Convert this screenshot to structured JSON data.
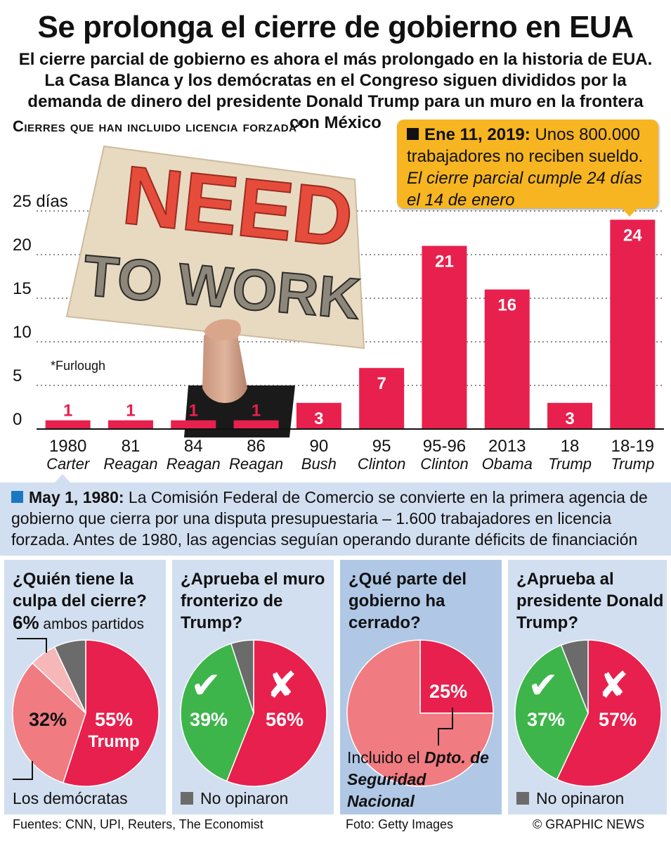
{
  "header": {
    "title": "Se prolonga el cierre de gobierno en EUA",
    "subtitle": "El cierre parcial de gobierno es ahora el más prolongado en la historia de EUA. La Casa Blanca y los demócratas en el Congreso siguen divididos por la demanda de dinero del presidente Donald Trump para un muro en la frontera con México"
  },
  "chart_heading": "Cierres que han incluido licencia forzada*",
  "furlough_note": "*Furlough",
  "photo": {
    "sign_line1": "NEED",
    "sign_line2": "TO WORK"
  },
  "callout": {
    "date": "Ene 11, 2019:",
    "text": "Unos 800.000 trabajadores no reciben sueldo.",
    "italic": "El cierre parcial cumple 24 días el 14 de enero"
  },
  "chart_data": {
    "type": "bar",
    "categories": [
      "1980",
      "81",
      "84",
      "86",
      "90",
      "95",
      "95-96",
      "2013",
      "18",
      "18-19"
    ],
    "presidents": [
      "Carter",
      "Reagan",
      "Reagan",
      "Reagan",
      "Bush",
      "Clinton",
      "Clinton",
      "Obama",
      "Trump",
      "Trump"
    ],
    "values": [
      1,
      1,
      1,
      1,
      3,
      7,
      21,
      16,
      3,
      24
    ],
    "value_labels": [
      "1",
      "1",
      "1",
      "1",
      "3",
      "7",
      "21",
      "16",
      "3",
      "24"
    ],
    "y_ticks": [
      "0",
      "5",
      "10",
      "15",
      "20",
      "25 días"
    ],
    "ylim": [
      0,
      25
    ],
    "grid": "dotted horizontal",
    "bar_color": "#e8204d"
  },
  "note": {
    "date": "May 1, 1980:",
    "text": "La Comisión Federal de Comercio se convierte en la primera agencia de gobierno que cierra por una disputa presupuestaria – 1.600 trabajadores en licencia forzada. Antes de 1980, las agencias seguían operando durante déficits de financiación"
  },
  "polls": [
    {
      "question": "¿Quién tiene la culpa del cierre?",
      "top_pct": "6%",
      "top_label": "ambos partidos",
      "label_a": "32%",
      "label_b": "55%",
      "label_b2": "Trump",
      "bottom_label": "Los demócratas",
      "slices": [
        {
          "value": 55,
          "color": "#e8204d"
        },
        {
          "value": 32,
          "color": "#f07b80"
        },
        {
          "value": 6,
          "color": "#f6b7b9"
        },
        {
          "value": 7,
          "color": "#6b6b6b"
        }
      ]
    },
    {
      "question": "¿Aprueba el muro fronterizo de Trump?",
      "yes_icon": "✔",
      "no_icon": "✘",
      "label_yes": "39%",
      "label_no": "56%",
      "legend": "No opinaron",
      "slices": [
        {
          "value": 56,
          "color": "#e8204d"
        },
        {
          "value": 39,
          "color": "#3db54a"
        },
        {
          "value": 5,
          "color": "#6b6b6b"
        }
      ]
    },
    {
      "question": "¿Qué parte del gobierno ha cerrado?",
      "label_pct": "25%",
      "caption_a": "Incluido el ",
      "caption_b": "Dpto. de Seguridad Nacional",
      "slices": [
        {
          "value": 25,
          "color": "#e8204d"
        },
        {
          "value": 75,
          "color": "#f07b80"
        }
      ]
    },
    {
      "question": "¿Aprueba al presidente Donald Trump?",
      "yes_icon": "✔",
      "no_icon": "✘",
      "label_yes": "37%",
      "label_no": "57%",
      "legend": "No opinaron",
      "slices": [
        {
          "value": 57,
          "color": "#e8204d"
        },
        {
          "value": 37,
          "color": "#3db54a"
        },
        {
          "value": 6,
          "color": "#6b6b6b"
        }
      ]
    }
  ],
  "footer": {
    "sources": "Fuentes: CNN, UPI, Reuters, The Economist",
    "photo": "Foto: Getty Images",
    "credit": "© GRAPHIC NEWS"
  }
}
